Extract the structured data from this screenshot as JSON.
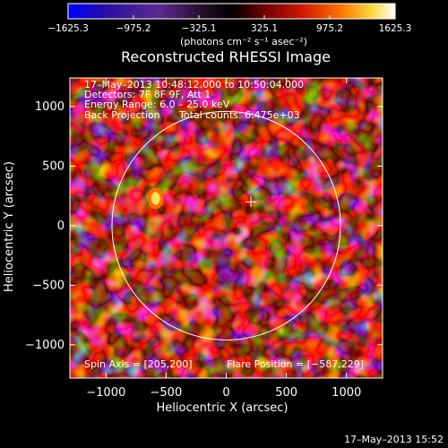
{
  "chart_data": {
    "type": "heatmap",
    "title": "Reconstructed RHESSI Image",
    "xlabel": "Heliocentric X (arcsec)",
    "ylabel": "Heliocentric Y (arcsec)",
    "xlim": [
      -1300,
      1300
    ],
    "ylim": [
      -1280,
      1240
    ],
    "x_ticks": [
      -1000,
      -500,
      0,
      500,
      1000
    ],
    "y_ticks": [
      -1000,
      -500,
      0,
      500,
      1000
    ],
    "x_tick_labels": [
      "−1000",
      "−500",
      "0",
      "500",
      "1000"
    ],
    "y_tick_labels": [
      "−1000",
      "−500",
      "0",
      "500",
      "1000"
    ],
    "colorbar": {
      "range": [
        -1625.3,
        1625.3
      ],
      "ticks": [
        -1625.3,
        -975.2,
        -325.1,
        325.1,
        975.2,
        1625.3
      ],
      "tick_labels": [
        "−1625.3",
        "−975.2",
        "−325.1",
        "325.1",
        "975.2",
        "1625.3"
      ],
      "units": "(photons cm⁻² s⁻¹ asec⁻²)"
    },
    "annotations": {
      "time_range": "17–May–2013 10:48:12.000 to 10:50:04.000",
      "detectors": "Detectors: 7F 8F 9F, Att 1",
      "energy": "Energy Range: 6.0 – 25.0 keV",
      "method": "Back Projection",
      "counts": "Total counts: 6.475e+03",
      "spin_axis": "Spin Axis = [205,200]",
      "flare_position": "Flare Position = [−587,229]"
    },
    "solar_limb": {
      "center": [
        0,
        0
      ],
      "radius_arcsec": 950
    },
    "marker_cross": [
      205,
      200
    ],
    "bright_source": [
      -587,
      229
    ]
  },
  "footer_date": "17–May–2013 15:52",
  "colors": {
    "background": "#000000",
    "limb": "#ffffff",
    "colormap": [
      "#0000ff",
      "#1a005a",
      "#3c1478",
      "#6a2da0",
      "#000000",
      "#8a0000",
      "#e01e00",
      "#ff8c00",
      "#ffe850",
      "#ffffff"
    ]
  }
}
